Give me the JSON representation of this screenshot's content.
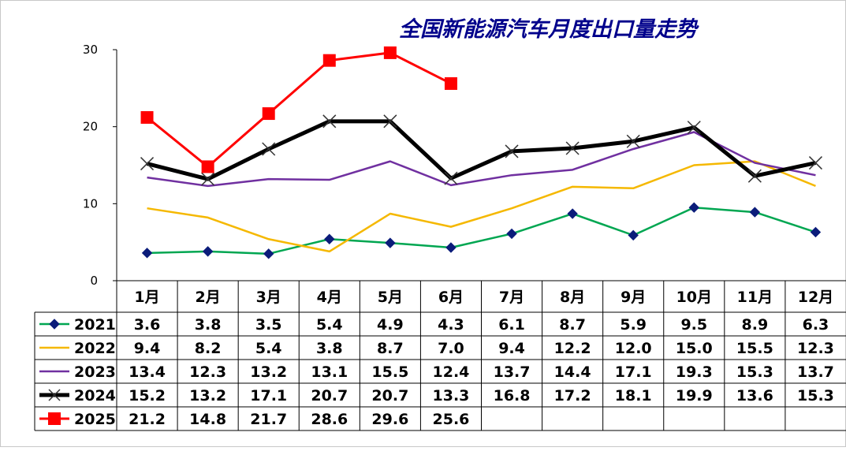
{
  "chart_data": {
    "type": "line",
    "title": "全国新能源汽车月度出口量走势",
    "categories": [
      "1月",
      "2月",
      "3月",
      "4月",
      "5月",
      "6月",
      "7月",
      "8月",
      "9月",
      "10月",
      "11月",
      "12月"
    ],
    "ylim": [
      0,
      30
    ],
    "yticks": [
      "0",
      "10",
      "20",
      "30"
    ],
    "grid": false,
    "legend": "data-table-left",
    "series": [
      {
        "name": "2021",
        "color": "#00a651",
        "marker": "diamond",
        "values": [
          3.6,
          3.8,
          3.5,
          5.4,
          4.9,
          4.3,
          6.1,
          8.7,
          5.9,
          9.5,
          8.9,
          6.3
        ],
        "labels": [
          "3.6",
          "3.8",
          "3.5",
          "5.4",
          "4.9",
          "4.3",
          "6.1",
          "8.7",
          "5.9",
          "9.5",
          "8.9",
          "6.3"
        ]
      },
      {
        "name": "2022",
        "color": "#f5b800",
        "marker": "none",
        "values": [
          9.4,
          8.2,
          5.4,
          3.8,
          8.7,
          7.0,
          9.4,
          12.2,
          12.0,
          15.0,
          15.5,
          12.3
        ],
        "labels": [
          "9.4",
          "8.2",
          "5.4",
          "3.8",
          "8.7",
          "7.0",
          "9.4",
          "12.2",
          "12.0",
          "15.0",
          "15.5",
          "12.3"
        ]
      },
      {
        "name": "2023",
        "color": "#7030a0",
        "marker": "none",
        "values": [
          13.4,
          12.3,
          13.2,
          13.1,
          15.5,
          12.4,
          13.7,
          14.4,
          17.1,
          19.3,
          15.3,
          13.7
        ],
        "labels": [
          "13.4",
          "12.3",
          "13.2",
          "13.1",
          "15.5",
          "12.4",
          "13.7",
          "14.4",
          "17.1",
          "19.3",
          "15.3",
          "13.7"
        ]
      },
      {
        "name": "2024",
        "color": "#000000",
        "marker": "x",
        "values": [
          15.2,
          13.2,
          17.1,
          20.7,
          20.7,
          13.3,
          16.8,
          17.2,
          18.1,
          19.9,
          13.6,
          15.3
        ],
        "labels": [
          "15.2",
          "13.2",
          "17.1",
          "20.7",
          "20.7",
          "13.3",
          "16.8",
          "17.2",
          "18.1",
          "19.9",
          "13.6",
          "15.3"
        ]
      },
      {
        "name": "2025",
        "color": "#ff0000",
        "marker": "square",
        "values": [
          21.2,
          14.8,
          21.7,
          28.6,
          29.6,
          25.6,
          null,
          null,
          null,
          null,
          null,
          null
        ],
        "labels": [
          "21.2",
          "14.8",
          "21.7",
          "28.6",
          "29.6",
          "25.6",
          "",
          "",
          "",
          "",
          "",
          ""
        ]
      }
    ],
    "colors": {
      "title": "#00008b",
      "border": "#000000",
      "frame": "#c8c8c8"
    }
  }
}
